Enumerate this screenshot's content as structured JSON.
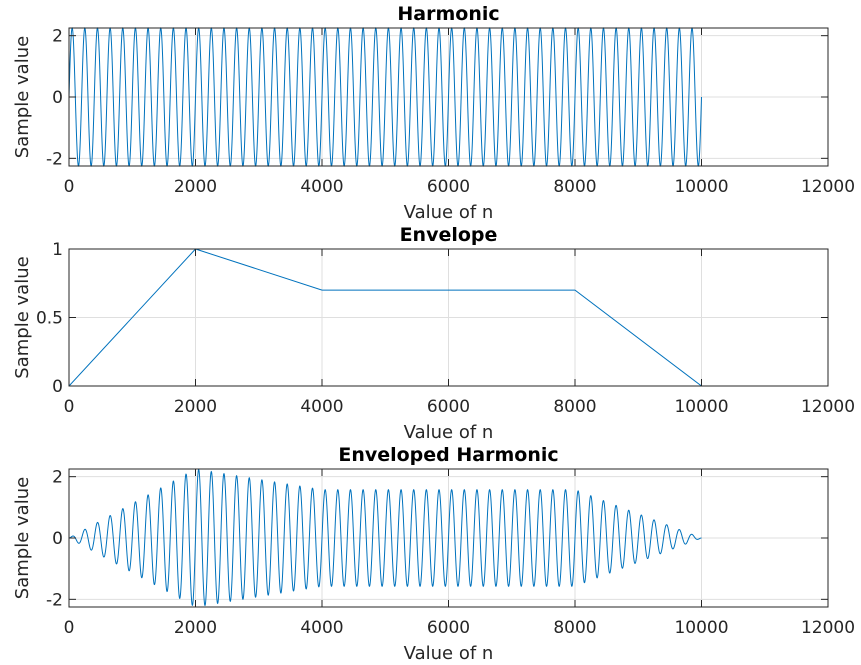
{
  "chart_data": [
    {
      "type": "line",
      "title": "Harmonic",
      "xlabel": "Value of n",
      "ylabel": "Sample value",
      "xlim": [
        0,
        12000
      ],
      "ylim": [
        -2.25,
        2.25
      ],
      "xticks": [
        0,
        2000,
        4000,
        6000,
        8000,
        10000,
        12000
      ],
      "yticks": [
        -2,
        0,
        2
      ],
      "grid": true,
      "series": [
        {
          "signal": "sine",
          "amplitude": 2.25,
          "n_start": 0,
          "n_end": 10000,
          "cycles": 50,
          "color": "#0072bd"
        }
      ]
    },
    {
      "type": "line",
      "title": "Envelope",
      "xlabel": "Value of n",
      "ylabel": "Sample value",
      "xlim": [
        0,
        12000
      ],
      "ylim": [
        0,
        1
      ],
      "xticks": [
        0,
        2000,
        4000,
        6000,
        8000,
        10000,
        12000
      ],
      "yticks": [
        0,
        0.5,
        1
      ],
      "grid": true,
      "series": [
        {
          "x": [
            0,
            2000,
            4000,
            8000,
            10000
          ],
          "y": [
            0,
            1,
            0.7,
            0.7,
            0
          ],
          "color": "#0072bd"
        }
      ]
    },
    {
      "type": "line",
      "title": "Enveloped Harmonic",
      "xlabel": "Value of n",
      "ylabel": "Sample value",
      "xlim": [
        0,
        12000
      ],
      "ylim": [
        -2.25,
        2.25
      ],
      "xticks": [
        0,
        2000,
        4000,
        6000,
        8000,
        10000,
        12000
      ],
      "yticks": [
        -2,
        0,
        2
      ],
      "grid": true,
      "series": [
        {
          "signal": "sine_times_envelope",
          "amplitude": 2.25,
          "n_start": 0,
          "n_end": 10000,
          "cycles": 50,
          "envelope_x": [
            0,
            2000,
            4000,
            8000,
            10000
          ],
          "envelope_y": [
            0,
            1,
            0.7,
            0.7,
            0
          ],
          "color": "#0072bd"
        }
      ]
    }
  ]
}
